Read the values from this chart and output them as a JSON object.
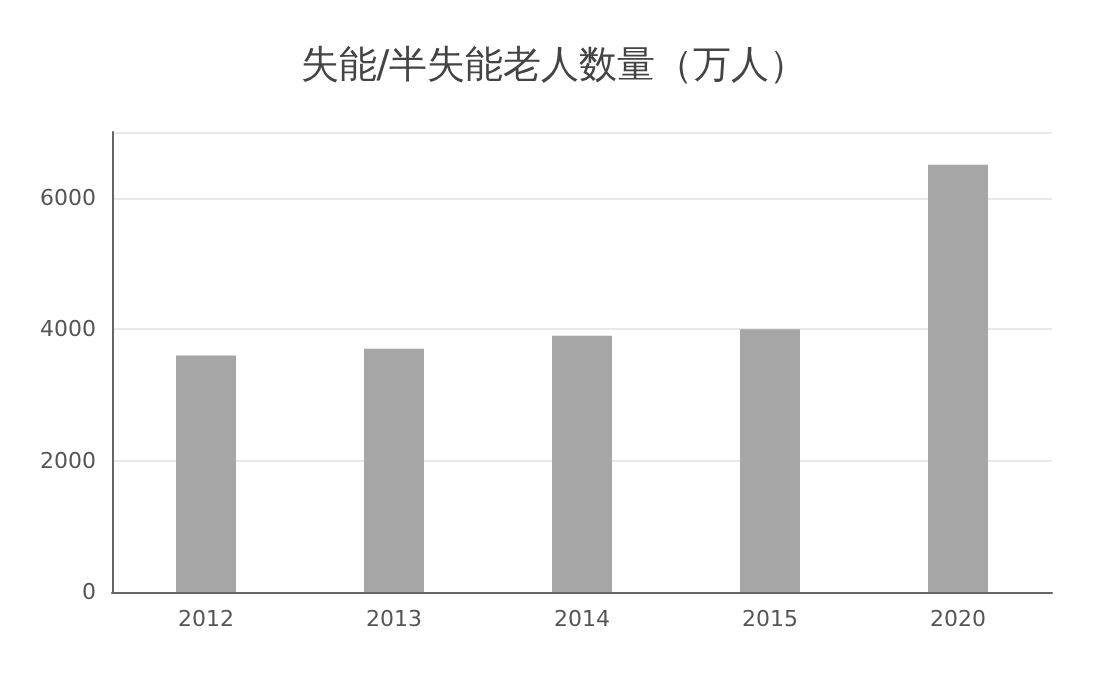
{
  "chart_data": {
    "type": "bar",
    "title": "失能/半失能老人数量（万人）",
    "categories": [
      "2012",
      "2013",
      "2014",
      "2015",
      "2020"
    ],
    "values": [
      3600,
      3700,
      3900,
      4000,
      6500
    ],
    "color": "#a6a6a6",
    "ylim": [
      0,
      7000
    ],
    "yticks": [
      0,
      2000,
      4000,
      6000
    ],
    "grid": "y"
  }
}
